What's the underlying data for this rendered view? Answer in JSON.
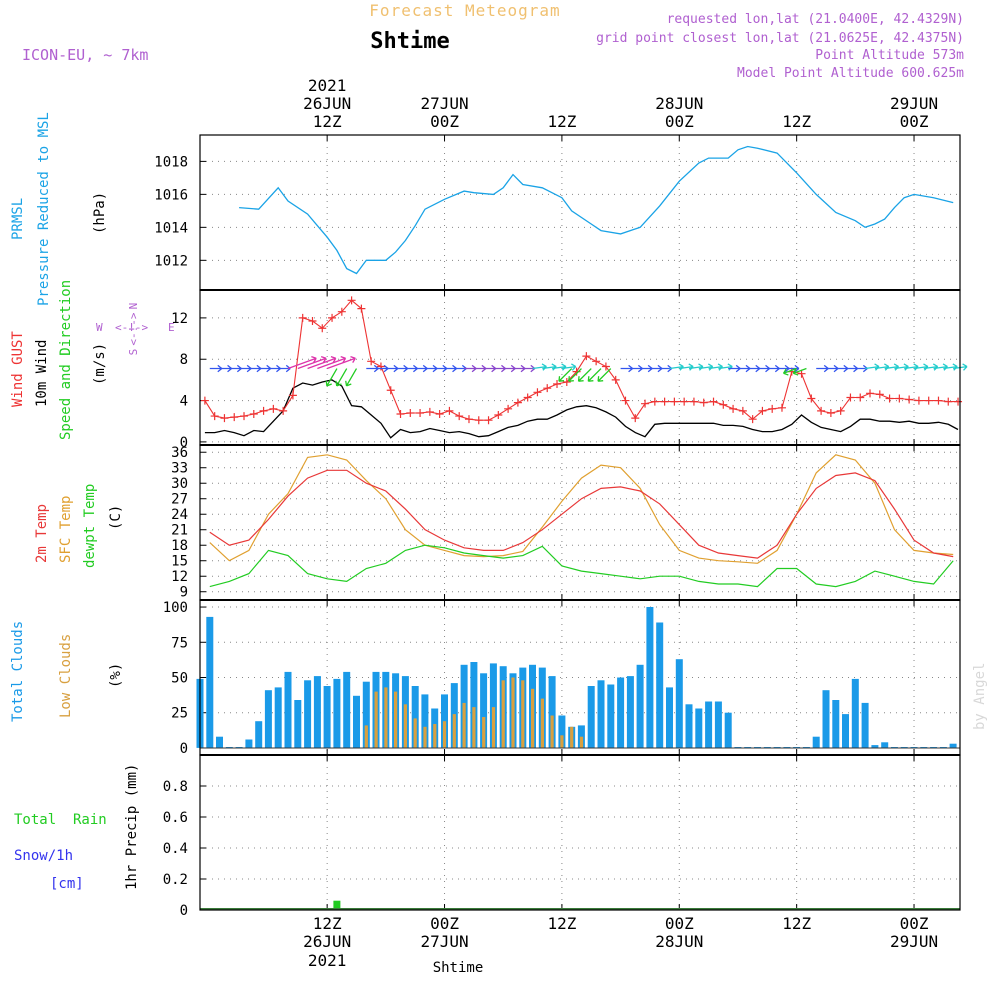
{
  "header": {
    "product_title": "Forecast Meteogram",
    "station": "Shtime",
    "model": "ICON-EU, ~ 7km",
    "requested": "requested lon,lat (21.0400E, 42.4329N)",
    "gridpoint": "grid point closest lon,lat (21.0625E, 42.4375N)",
    "point_alt": "Point Altitude 573m",
    "model_alt": "Model Point Altitude 600.625m"
  },
  "top_axis": [
    {
      "hour": "12Z",
      "day": "26JUN",
      "year": "2021"
    },
    {
      "hour": "00Z",
      "day": "27JUN",
      "year": ""
    },
    {
      "hour": "12Z",
      "day": "",
      "year": ""
    },
    {
      "hour": "00Z",
      "day": "28JUN",
      "year": ""
    },
    {
      "hour": "12Z",
      "day": "",
      "year": ""
    },
    {
      "hour": "00Z",
      "day": "29JUN",
      "year": ""
    }
  ],
  "bottom_axis": [
    {
      "hour": "12Z",
      "day": "26JUN",
      "year": "2021"
    },
    {
      "hour": "00Z",
      "day": "27JUN",
      "year": ""
    },
    {
      "hour": "12Z",
      "day": "",
      "year": ""
    },
    {
      "hour": "00Z",
      "day": "28JUN",
      "year": ""
    },
    {
      "hour": "12Z",
      "day": "",
      "year": ""
    },
    {
      "hour": "00Z",
      "day": "29JUN",
      "year": ""
    }
  ],
  "footer_station": "Shtime",
  "watermark": "by Angel",
  "panel_labels": {
    "pressure": {
      "l1": "PRMSL",
      "l2": "Pressure Reduced to MSL",
      "unit": "(hPa)"
    },
    "wind": {
      "gust": "Wind GUST",
      "wind10": "10m Wind",
      "dir": "Speed and Direction",
      "unit": "(m/s)",
      "compass_n": "N",
      "compass_s": "S",
      "compass_w": "W",
      "compass_e": "E",
      "compass_arrows": "<-!->"
    },
    "temp": {
      "t2m": "2m Temp",
      "sfc": "SFC Temp",
      "dew": "dewpt Temp",
      "unit": "(C)"
    },
    "clouds": {
      "total": "Total Clouds",
      "low": "Low Clouds",
      "unit": "(%)"
    },
    "precip": {
      "rain": "Total  Rain",
      "snow": "Snow/1h",
      "snow_unit": "[cm]",
      "ylabel": "1hr Precip (mm)"
    }
  },
  "colors": {
    "pressure": "#1aa3e6",
    "gust": "#ee3333",
    "wind": "#000000",
    "temp2m": "#e83838",
    "sfc": "#e0a030",
    "dew": "#22cc22",
    "cloud_total": "#1a9ae8",
    "cloud_low": "#d8a040",
    "rain": "#22cc22",
    "snow": "#3333ee",
    "header_orange": "#f0c070",
    "header_purple": "#b060d0"
  },
  "chart_data": [
    {
      "type": "line",
      "title": "PRMSL Pressure Reduced to MSL",
      "ylabel": "(hPa)",
      "ylim": [
        1010.2,
        1019.6
      ],
      "yticks": [
        1012,
        1014,
        1016,
        1018
      ],
      "x_hours_from_00Z_26JUN": [
        3,
        5,
        7,
        8,
        10,
        11,
        12,
        13,
        14,
        15,
        16,
        17,
        18,
        19,
        20,
        21,
        22,
        24,
        26,
        27,
        29,
        30,
        31,
        32,
        34,
        36,
        37,
        39,
        40,
        42,
        44,
        46,
        48,
        50,
        51,
        53,
        54,
        55,
        56,
        58,
        60,
        62,
        64,
        66,
        67,
        68,
        69,
        70,
        71,
        72,
        74,
        76
      ],
      "series": [
        {
          "name": "PRMSL",
          "values": [
            1015.2,
            1015.1,
            1016.4,
            1015.6,
            1014.8,
            1014.1,
            1013.4,
            1012.6,
            1011.5,
            1011.2,
            1012.0,
            1012.0,
            1012.0,
            1012.5,
            1013.2,
            1014.1,
            1015.1,
            1015.7,
            1016.2,
            1016.1,
            1016.0,
            1016.4,
            1017.2,
            1016.6,
            1016.4,
            1015.8,
            1015.0,
            1014.2,
            1013.8,
            1013.6,
            1014.0,
            1015.3,
            1016.8,
            1017.9,
            1018.2,
            1018.2,
            1018.7,
            1018.9,
            1018.8,
            1018.5,
            1017.3,
            1016.0,
            1014.9,
            1014.4,
            1014.0,
            1014.2,
            1014.5,
            1015.2,
            1015.8,
            1016.0,
            1015.8,
            1015.5
          ]
        }
      ]
    },
    {
      "type": "line",
      "title": "Wind GUST / 10m Wind Speed and Direction",
      "ylabel": "(m/s)",
      "ylim": [
        -0.3,
        14.7
      ],
      "yticks": [
        0,
        4,
        8,
        12
      ],
      "x_hours_from_00Z_26JUN": [
        -0.5,
        0.5,
        1.5,
        2.5,
        3.5,
        4.5,
        5.5,
        6.5,
        7.5,
        8.5,
        9.5,
        10.5,
        11.5,
        12.5,
        13.5,
        14.5,
        15.5,
        16.5,
        17.5,
        18.5,
        19.5,
        20.5,
        21.5,
        22.5,
        23.5,
        24.5,
        25.5,
        26.5,
        27.5,
        28.5,
        29.5,
        30.5,
        31.5,
        32.5,
        33.5,
        34.5,
        35.5,
        36.5,
        37.5,
        38.5,
        39.5,
        40.5,
        41.5,
        42.5,
        43.5,
        44.5,
        45.5,
        46.5,
        47.5,
        48.5,
        49.5,
        50.5,
        51.5,
        52.5,
        53.5,
        54.5,
        55.5,
        56.5,
        57.5,
        58.5,
        59.5,
        60.5,
        61.5,
        62.5,
        63.5,
        64.5,
        65.5,
        66.5,
        67.5,
        68.5,
        69.5,
        70.5,
        71.5,
        72.5,
        73.5,
        74.5,
        75.5,
        76.5
      ],
      "series": [
        {
          "name": "Wind GUST",
          "values": [
            4.0,
            2.5,
            2.3,
            2.4,
            2.5,
            2.7,
            3.0,
            3.2,
            3.0,
            4.5,
            12.0,
            11.7,
            11.0,
            12.0,
            12.6,
            13.7,
            12.9,
            7.8,
            7.3,
            5.0,
            2.7,
            2.8,
            2.8,
            2.9,
            2.7,
            3.0,
            2.5,
            2.2,
            2.1,
            2.1,
            2.6,
            3.2,
            3.8,
            4.3,
            4.8,
            5.2,
            5.6,
            5.8,
            6.8,
            8.3,
            7.8,
            7.3,
            6.0,
            4.0,
            2.3,
            3.7,
            3.9,
            3.9,
            3.9,
            3.9,
            3.9,
            3.8,
            3.9,
            3.6,
            3.2,
            3.0,
            2.2,
            3.0,
            3.2,
            3.3,
            6.8,
            6.6,
            4.2,
            3.0,
            2.8,
            3.0,
            4.3,
            4.3,
            4.7,
            4.6,
            4.2,
            4.2,
            4.1,
            4.0,
            4.0,
            4.0,
            3.9,
            3.9
          ]
        },
        {
          "name": "10m Wind",
          "values": [
            0.9,
            0.9,
            1.1,
            0.9,
            0.6,
            1.1,
            1.0,
            2.0,
            3.0,
            5.2,
            5.7,
            5.5,
            5.8,
            6.0,
            5.4,
            3.5,
            3.4,
            2.6,
            1.8,
            0.4,
            1.2,
            0.9,
            1.0,
            1.3,
            1.1,
            0.9,
            1.0,
            0.8,
            0.5,
            0.6,
            1.0,
            1.4,
            1.6,
            2.0,
            2.2,
            2.2,
            2.6,
            3.1,
            3.4,
            3.5,
            3.3,
            2.9,
            2.4,
            1.5,
            0.9,
            0.5,
            1.7,
            1.8,
            1.8,
            1.8,
            1.8,
            1.8,
            1.8,
            1.6,
            1.6,
            1.5,
            1.2,
            1.0,
            1.0,
            1.2,
            1.7,
            2.6,
            1.9,
            1.4,
            1.2,
            1.0,
            1.5,
            2.2,
            2.2,
            2.0,
            2.0,
            1.9,
            2.0,
            1.8,
            1.8,
            1.9,
            1.7,
            1.2
          ]
        }
      ]
    },
    {
      "type": "line",
      "title": "2m Temp / SFC Temp / dewpt Temp",
      "ylabel": "(C)",
      "ylim": [
        7.4,
        37.4
      ],
      "yticks": [
        9,
        12,
        15,
        18,
        21,
        24,
        27,
        30,
        33,
        36
      ],
      "x_hours_from_00Z_26JUN": [
        0,
        2,
        4,
        6,
        8,
        10,
        12,
        14,
        16,
        18,
        20,
        22,
        24,
        26,
        28,
        30,
        32,
        34,
        36,
        38,
        40,
        42,
        44,
        46,
        48,
        50,
        52,
        54,
        56,
        58,
        60,
        62,
        64,
        66,
        68,
        70,
        72,
        74,
        76
      ],
      "series": [
        {
          "name": "2m Temp",
          "values": [
            20.5,
            18.0,
            19.0,
            23.0,
            27.5,
            31.0,
            32.5,
            32.5,
            30.0,
            28.5,
            25.0,
            21.0,
            19.0,
            17.5,
            17.0,
            17.0,
            18.5,
            21.0,
            24.0,
            27.0,
            29.0,
            29.3,
            28.5,
            26.0,
            22.0,
            18.0,
            16.5,
            16.0,
            15.5,
            18.0,
            24.0,
            29.0,
            31.5,
            32.0,
            30.5,
            25.0,
            19.0,
            16.5,
            15.8
          ]
        },
        {
          "name": "SFC Temp",
          "values": [
            18.5,
            15.0,
            17.0,
            24.0,
            28.0,
            35.0,
            35.5,
            34.5,
            30.5,
            27.0,
            21.0,
            18.0,
            17.0,
            16.0,
            15.8,
            16.0,
            16.8,
            21.5,
            26.5,
            31.0,
            33.5,
            33.0,
            29.0,
            22.0,
            17.0,
            15.5,
            15.0,
            14.8,
            14.5,
            17.0,
            24.0,
            32.0,
            35.5,
            34.5,
            30.0,
            21.0,
            17.0,
            16.5,
            16.2
          ]
        },
        {
          "name": "dewpt Temp",
          "values": [
            10.0,
            11.0,
            12.5,
            17.0,
            16.0,
            12.5,
            11.5,
            11.0,
            13.5,
            14.5,
            17.0,
            18.0,
            17.5,
            16.5,
            16.0,
            15.5,
            16.0,
            17.8,
            14.0,
            13.0,
            12.5,
            12.0,
            11.5,
            12.0,
            12.0,
            11.0,
            10.5,
            10.5,
            10.0,
            13.5,
            13.5,
            10.5,
            10.0,
            11.0,
            13.0,
            12.0,
            11.0,
            10.5,
            15.0
          ]
        }
      ]
    },
    {
      "type": "bar",
      "title": "Total Clouds / Low Clouds",
      "ylabel": "(%)",
      "ylim": [
        -5,
        105
      ],
      "yticks": [
        0,
        25,
        50,
        75,
        100
      ],
      "x_hours_from_00Z_26JUN": [
        -1,
        0,
        1,
        2,
        3,
        4,
        5,
        6,
        7,
        8,
        9,
        10,
        11,
        12,
        13,
        14,
        15,
        16,
        17,
        18,
        19,
        20,
        21,
        22,
        23,
        24,
        25,
        26,
        27,
        28,
        29,
        30,
        31,
        32,
        33,
        34,
        35,
        36,
        37,
        38,
        39,
        40,
        41,
        42,
        43,
        44,
        45,
        46,
        47,
        48,
        49,
        50,
        51,
        52,
        53,
        54,
        55,
        56,
        57,
        58,
        59,
        60,
        61,
        62,
        63,
        64,
        65,
        66,
        67,
        68,
        69,
        70,
        71,
        72,
        73,
        74,
        75,
        76
      ],
      "series": [
        {
          "name": "Total Clouds",
          "values": [
            49,
            93,
            8,
            0,
            0,
            6,
            19,
            41,
            43,
            54,
            34,
            48,
            51,
            44,
            49,
            54,
            37,
            47,
            54,
            54,
            53,
            51,
            44,
            38,
            28,
            38,
            46,
            59,
            61,
            53,
            60,
            58,
            53,
            57,
            59,
            57,
            51,
            23,
            15,
            16,
            44,
            48,
            45,
            50,
            51,
            59,
            100,
            89,
            43,
            63,
            31,
            28,
            33,
            33,
            25,
            0,
            0,
            0,
            0,
            0,
            0,
            0,
            0,
            8,
            41,
            34,
            24,
            49,
            32,
            2,
            4,
            0,
            0,
            0,
            0,
            0,
            0,
            3
          ]
        },
        {
          "name": "Low Clouds",
          "values": [
            0,
            0,
            0,
            0,
            0,
            0,
            0,
            0,
            0,
            0,
            0,
            0,
            0,
            0,
            0,
            0,
            0,
            16,
            40,
            43,
            40,
            31,
            21,
            15,
            17,
            19,
            24,
            32,
            29,
            22,
            29,
            48,
            50,
            48,
            42,
            35,
            23,
            9,
            15,
            8,
            0,
            0,
            0,
            0,
            0,
            0,
            0,
            0,
            0,
            0,
            0,
            0,
            0,
            0,
            0,
            0,
            0,
            0,
            0,
            0,
            0,
            0,
            0,
            0,
            0,
            0,
            0,
            0,
            0,
            0,
            0,
            0,
            0,
            0,
            0,
            0,
            0,
            0
          ]
        }
      ]
    },
    {
      "type": "bar",
      "title": "Total Rain / Snow/1h",
      "ylabel": "1hr Precip (mm)",
      "ylim": [
        0,
        1.0
      ],
      "yticks": [
        0,
        0.2,
        0.4,
        0.6,
        0.8
      ],
      "x_hours_from_00Z_26JUN": [
        11,
        13
      ],
      "series": [
        {
          "name": "Total Rain",
          "values": [
            0.01,
            0.06
          ]
        },
        {
          "name": "Snow/1h",
          "values": [
            0,
            0
          ]
        }
      ]
    }
  ]
}
